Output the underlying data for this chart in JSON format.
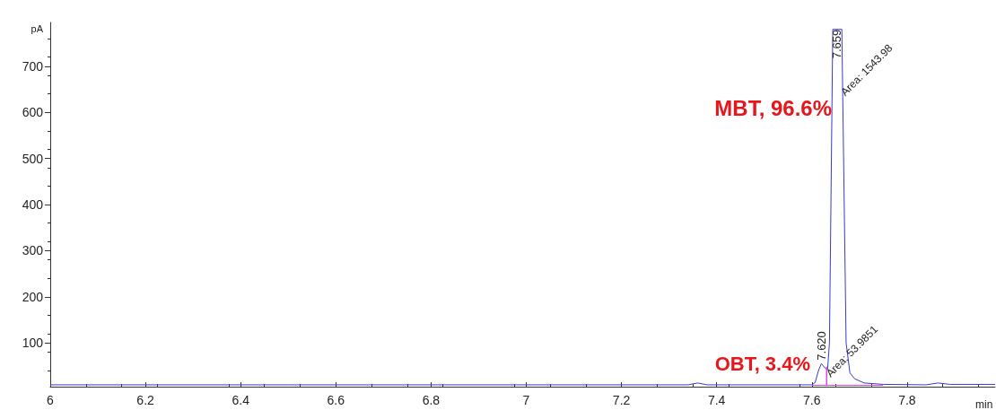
{
  "chart_data": {
    "type": "line",
    "xlabel": "min",
    "ylabel": "pA",
    "xlim": [
      6,
      7.985
    ],
    "xticks": [
      6,
      6.2,
      6.4,
      6.6,
      6.8,
      7,
      7.2,
      7.4,
      7.6,
      7.8
    ],
    "ylim": [
      5,
      795
    ],
    "yticks": [
      100,
      200,
      300,
      400,
      500,
      600,
      700
    ],
    "grid": false,
    "marker": "none",
    "line_style": "solid",
    "series": [
      {
        "color": "#3a3ac8",
        "x": [
          6,
          6.5,
          7.34,
          7.36,
          7.38,
          7.6,
          7.607,
          7.614,
          7.62,
          7.628,
          7.633,
          7.637,
          7.644,
          7.663,
          7.672,
          7.68,
          7.69,
          7.71,
          7.75,
          7.84,
          7.865,
          7.89,
          7.985
        ],
        "values": [
          9,
          9,
          9,
          13,
          9,
          9,
          14,
          40,
          55,
          45,
          42,
          100,
          780,
          780,
          100,
          35,
          22,
          13,
          10,
          9,
          13,
          10,
          10
        ]
      },
      {
        "color": "#e040e0",
        "x": [
          7.6,
          7.631,
          7.631,
          7.631,
          7.75
        ],
        "values": [
          8,
          8,
          48,
          8,
          8
        ]
      }
    ],
    "annotations": [
      {
        "text": "MBT, 96.6%",
        "x": 7.642,
        "y": 610
      },
      "OBT, 3.4%",
      {
        "text": "7.659",
        "x": 7.653,
        "y": 780
      },
      {
        "text": "Area: 1543.98",
        "x": 7.665,
        "y": 640
      },
      {
        "text": "7.620",
        "x": 7.62,
        "y": 62
      },
      {
        "text": "Area: 53.9851",
        "x": 7.634,
        "y": 30
      }
    ]
  }
}
